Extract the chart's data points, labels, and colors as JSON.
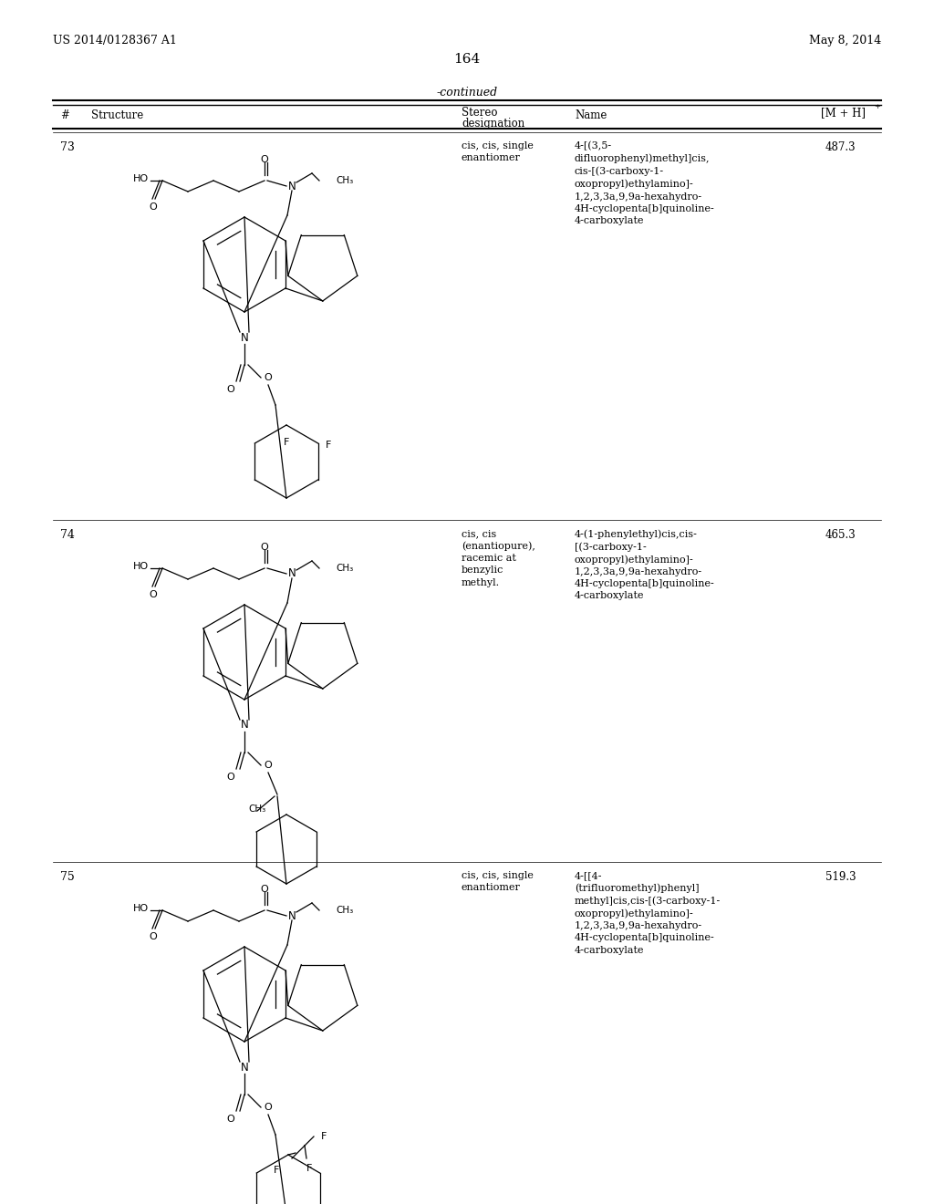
{
  "page_header_left": "US 2014/0128367 A1",
  "page_header_right": "May 8, 2014",
  "page_number": "164",
  "continued_label": "-continued",
  "bg_color": "#ffffff",
  "rows": [
    {
      "number": "73",
      "stereo": "cis, cis, single\nenantiomer",
      "name": "4-[(3,5-\ndifluorophenyl)methyl]cis,\ncis-[(3-carboxy-1-\noxopropyl)ethylamino]-\n1,2,3,3a,9,9a-hexahydro-\n4H-cyclopenta[b]quinoline-\n4-carboxylate",
      "mh": "487.3"
    },
    {
      "number": "74",
      "stereo": "cis, cis\n(enantiopure),\nracemic at\nbenzylic\nmethyl.",
      "name": "4-(1-phenylethyl)cis,cis-\n[(3-carboxy-1-\noxopropyl)ethylamino]-\n1,2,3,3a,9,9a-hexahydro-\n4H-cyclopenta[b]quinoline-\n4-carboxylate",
      "mh": "465.3"
    },
    {
      "number": "75",
      "stereo": "cis, cis, single\nenantiomer",
      "name": "4-[[4-\n(trifluoromethyl)phenyl]\nmethyl]cis,cis-[(3-carboxy-1-\noxopropyl)ethylamino]-\n1,2,3,3a,9,9a-hexahydro-\n4H-cyclopenta[b]quinoline-\n4-carboxylate",
      "mh": "519.3"
    }
  ]
}
